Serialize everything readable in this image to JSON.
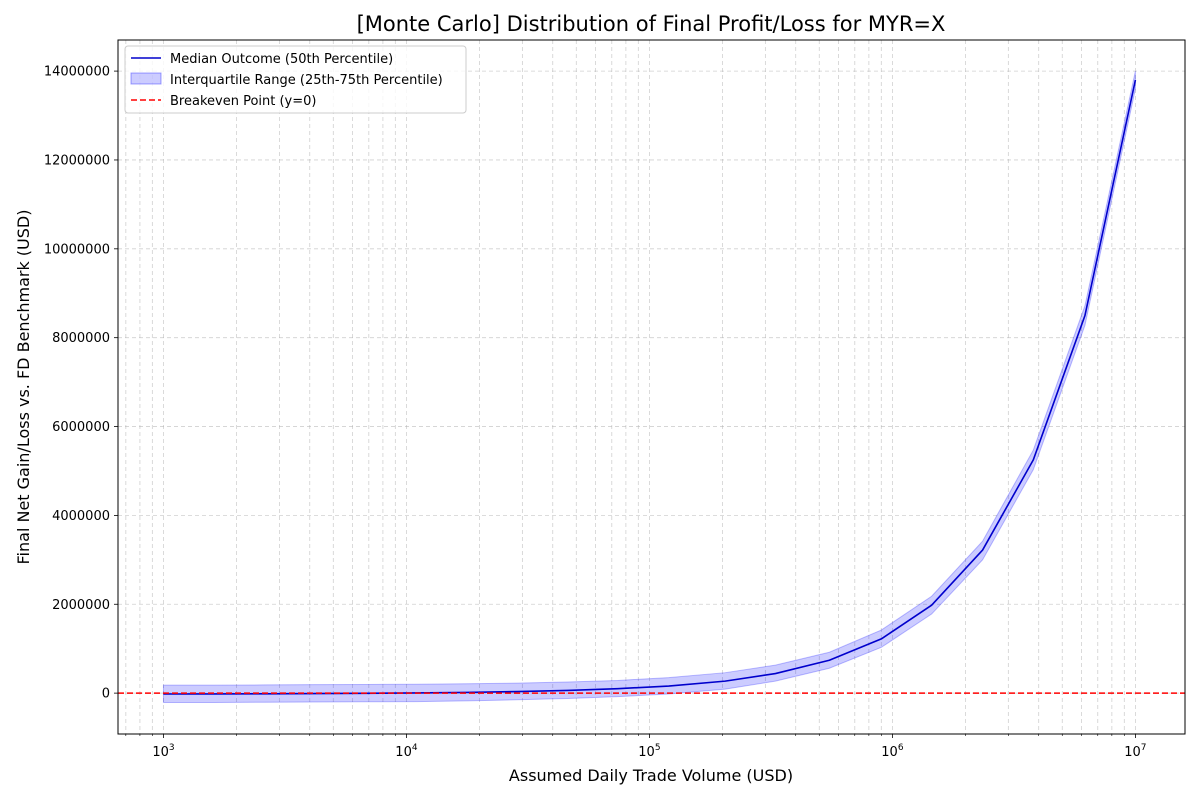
{
  "chart_data": {
    "type": "line",
    "title": "[Monte Carlo] Distribution of Final Profit/Loss for MYR=X",
    "xlabel": "Assumed Daily Trade Volume (USD)",
    "ylabel": "Final Net Gain/Loss vs. FD Benchmark (USD)",
    "x_scale": "log",
    "xlim": [
      650,
      16000000
    ],
    "ylim": [
      -920000,
      14700000
    ],
    "grid": true,
    "legend_position": "top-left",
    "x_ticks": [
      {
        "value": 1000,
        "base": "10",
        "exp": "3"
      },
      {
        "value": 10000,
        "base": "10",
        "exp": "4"
      },
      {
        "value": 100000,
        "base": "10",
        "exp": "5"
      },
      {
        "value": 1000000,
        "base": "10",
        "exp": "6"
      },
      {
        "value": 10000000,
        "base": "10",
        "exp": "7"
      }
    ],
    "y_ticks": [
      {
        "value": 0,
        "label": "0"
      },
      {
        "value": 2000000,
        "label": "2000000"
      },
      {
        "value": 4000000,
        "label": "4000000"
      },
      {
        "value": 6000000,
        "label": "6000000"
      },
      {
        "value": 8000000,
        "label": "8000000"
      },
      {
        "value": 10000000,
        "label": "10000000"
      },
      {
        "value": 12000000,
        "label": "12000000"
      },
      {
        "value": 14000000,
        "label": "14000000"
      }
    ],
    "x": [
      1000,
      1610,
      2600,
      4200,
      6800,
      11000,
      17700,
      28500,
      46000,
      74000,
      120000,
      205000,
      330000,
      550000,
      900000,
      1450000,
      2350000,
      3800000,
      6200000,
      10000000
    ],
    "series": [
      {
        "name": "Median Outcome (50th Percentile)",
        "color": "#0000cc",
        "kind": "line",
        "values": [
          -20000,
          -18000,
          -15000,
          -10000,
          -5000,
          5000,
          15000,
          35000,
          60000,
          100000,
          160000,
          270000,
          440000,
          740000,
          1220000,
          1980000,
          3220000,
          5250000,
          8500000,
          13800000
        ]
      },
      {
        "name": "Interquartile Range (25th-75th Percentile)",
        "color": "#0000ff",
        "kind": "band",
        "lower": [
          -210000,
          -210000,
          -205000,
          -200000,
          -195000,
          -190000,
          -175000,
          -150000,
          -120000,
          -80000,
          -20000,
          90000,
          270000,
          560000,
          1030000,
          1780000,
          3000000,
          5030000,
          8280000,
          13600000
        ],
        "upper": [
          180000,
          180000,
          185000,
          190000,
          195000,
          200000,
          210000,
          225000,
          250000,
          285000,
          350000,
          460000,
          630000,
          920000,
          1420000,
          2180000,
          3420000,
          5470000,
          8720000,
          14000000
        ]
      },
      {
        "name": "Breakeven Point (y=0)",
        "color": "#ff0000",
        "kind": "hline",
        "value": 0
      }
    ]
  }
}
